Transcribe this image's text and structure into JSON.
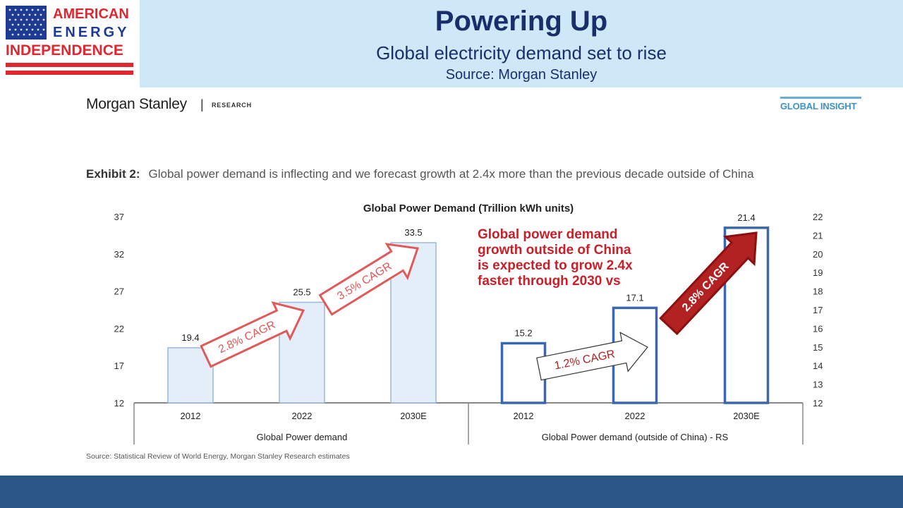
{
  "logo": {
    "line1": "AMERICAN",
    "line2": "ENERGY",
    "line3": "INDEPENDENCE",
    "colors": {
      "red": "#e0262f",
      "blue": "#1f3a93"
    }
  },
  "header": {
    "title": "Powering Up",
    "subtitle": "Global electricity demand set to rise",
    "source": "Source: Morgan Stanley"
  },
  "report": {
    "brand": "Morgan Stanley",
    "separator": "|",
    "section": "RESEARCH",
    "badge": "GLOBAL INSIGHT"
  },
  "exhibit": {
    "label": "Exhibit 2:",
    "text": "Global power demand is inflecting and we forecast growth at 2.4x more than the previous decade outside of China"
  },
  "footer": {
    "source": "Source: Statistical Review of World Energy, Morgan Stanley Research estimates"
  },
  "chart_data": {
    "type": "bar",
    "title": "Global Power Demand (Trillion kWh units)",
    "groups": [
      {
        "label": "Global Power demand",
        "axis": "left",
        "categories": [
          "2012",
          "2022",
          "2030E"
        ],
        "values": [
          19.4,
          25.5,
          33.5
        ],
        "value_labels": [
          "19.4",
          "25.5",
          "33.5"
        ],
        "style": "filled"
      },
      {
        "label": "Global Power demand (outside of China) - RS",
        "axis": "right",
        "categories": [
          "2012",
          "2022",
          "2030E"
        ],
        "values": [
          15.2,
          17.1,
          21.4
        ],
        "value_labels": [
          "15.2",
          "17.1",
          "21.4"
        ],
        "style": "outline"
      }
    ],
    "left_axis": {
      "min": 12,
      "max": 37,
      "ticks": [
        "12",
        "17",
        "22",
        "27",
        "32",
        "37"
      ]
    },
    "right_axis": {
      "min": 12,
      "max": 22,
      "ticks": [
        "12",
        "13",
        "14",
        "15",
        "16",
        "17",
        "18",
        "19",
        "20",
        "21",
        "22"
      ]
    },
    "arrows": [
      {
        "group": 0,
        "from": 0,
        "to": 1,
        "label": "2.8% CAGR"
      },
      {
        "group": 0,
        "from": 1,
        "to": 2,
        "label": "3.5% CAGR"
      },
      {
        "group": 1,
        "from": 0,
        "to": 1,
        "label": "1.2% CAGR"
      },
      {
        "group": 1,
        "from": 1,
        "to": 2,
        "label": "2.8% CAGR"
      }
    ],
    "annotation": [
      "Global power demand",
      "growth outside of China",
      "is expected to grow 2.4x",
      "faster through 2030 vs"
    ],
    "colors": {
      "filled_bar_fill": "#e4eef8",
      "filled_bar_stroke": "#9ab8d6",
      "outline_bar_stroke": "#3b66b0",
      "arrow_red_fill": "#ffffff",
      "arrow_red_stroke": "#e05a5a",
      "arrow_red_text": "#e05a5a",
      "arrow_dark_fill": "#b22222",
      "arrow_dark_stroke": "#8c1010",
      "annotation_text": "#c8202a"
    }
  }
}
